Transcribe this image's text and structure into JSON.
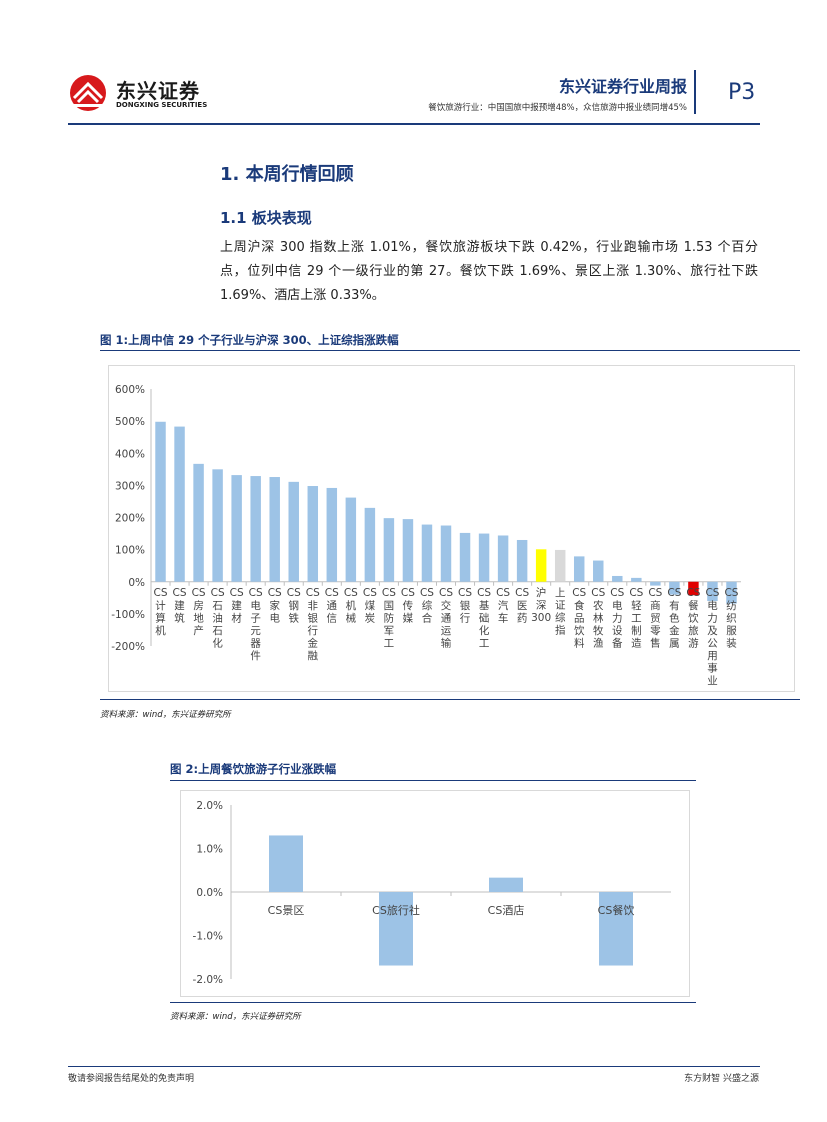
{
  "header": {
    "brand_cn": "东兴证券",
    "brand_en": "DONGXING SECURITIES",
    "report_title": "东兴证券行业周报",
    "report_subtitle": "餐饮旅游行业：中国国旅中报预增48%，众信旅游中报业绩同增45%",
    "page_number": "P3",
    "logo_icon": "dongxing-logo-icon"
  },
  "section": {
    "title": "1. 本周行情回顾",
    "subsection_title": "1.1 板块表现",
    "paragraph": "上周沪深 300 指数上涨 1.01%，餐饮旅游板块下跌 0.42%，行业跑输市场 1.53 个百分点，位列中信 29 个一级行业的第 27。餐饮下跌 1.69%、景区上涨 1.30%、旅行社下跌 1.69%、酒店上涨 0.33%。"
  },
  "figure1": {
    "title": "图 1:上周中信 29 个子行业与沪深 300、上证综指涨跌幅",
    "source": "资料来源：wind，东兴证券研究所"
  },
  "figure2": {
    "title": "图 2:上周餐饮旅游子行业涨跌幅",
    "source": "资料来源：wind，东兴证券研究所"
  },
  "footer": {
    "left": "敬请参阅报告结尾处的免责声明",
    "right": "东方财智 兴盛之源"
  },
  "colors": {
    "brand_blue": "#1a3a7a",
    "bar_blue": "#9dc3e6",
    "highlight_yellow": "#ffff00",
    "highlight_gray": "#d9d9d9",
    "highlight_red": "#e00000",
    "logo_red": "#d7191c"
  },
  "chart_data": [
    {
      "type": "bar",
      "title": "图 1:上周中信 29 个子行业与沪深 300、上证综指涨跌幅",
      "categories": [
        "CS计算机",
        "CS建筑",
        "CS房地产",
        "CS石油石化",
        "CS建材",
        "CS电子元器件",
        "CS家电",
        "CS钢铁",
        "CS非银行金融",
        "CS通信",
        "CS机械",
        "CS煤炭",
        "CS国防军工",
        "CS传媒",
        "CS综合",
        "CS交通运输",
        "CS银行",
        "CS基础化工",
        "CS汽车",
        "CS医药",
        "沪深300",
        "上证综指",
        "CS食品饮料",
        "CS农林牧渔",
        "CS电力设备",
        "CS轻工制造",
        "CS商贸零售",
        "CS有色金属",
        "CS餐饮旅游",
        "CS电力及公用事业",
        "CS纺织服装"
      ],
      "values": [
        498,
        483,
        367,
        350,
        332,
        329,
        326,
        311,
        298,
        292,
        262,
        230,
        198,
        195,
        178,
        175,
        152,
        150,
        144,
        130,
        101,
        99,
        79,
        66,
        18,
        12,
        -12,
        -40,
        -42,
        -60,
        -68
      ],
      "highlights": {
        "沪深300": "#ffff00",
        "上证综指": "#d9d9d9",
        "CS餐饮旅游": "#e00000"
      },
      "ylim": [
        -200,
        600
      ],
      "yticks": [
        600,
        500,
        400,
        300,
        200,
        100,
        0,
        -100,
        -200
      ],
      "ytick_labels": [
        "600%",
        "500%",
        "400%",
        "300%",
        "200%",
        "100%",
        "0%",
        "-100%",
        "-200%"
      ],
      "xlabel": "",
      "ylabel": "",
      "grid": false
    },
    {
      "type": "bar",
      "title": "图 2:上周餐饮旅游子行业涨跌幅",
      "categories": [
        "CS景区",
        "CS旅行社",
        "CS酒店",
        "CS餐饮"
      ],
      "values": [
        1.3,
        -1.69,
        0.33,
        -1.69
      ],
      "ylim": [
        -2.0,
        2.0
      ],
      "yticks": [
        2.0,
        1.0,
        0.0,
        -1.0,
        -2.0
      ],
      "ytick_labels": [
        "2.0%",
        "1.0%",
        "0.0%",
        "-1.0%",
        "-2.0%"
      ],
      "xlabel": "",
      "ylabel": "",
      "grid": false
    }
  ]
}
